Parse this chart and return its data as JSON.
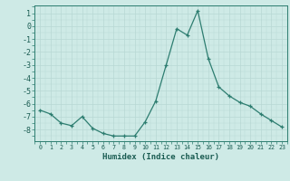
{
  "x": [
    0,
    1,
    2,
    3,
    4,
    5,
    6,
    7,
    8,
    9,
    10,
    11,
    12,
    13,
    14,
    15,
    16,
    17,
    18,
    19,
    20,
    21,
    22,
    23
  ],
  "y": [
    -6.5,
    -6.8,
    -7.5,
    -7.7,
    -7.0,
    -7.9,
    -8.3,
    -8.5,
    -8.5,
    -8.5,
    -7.4,
    -5.8,
    -3.0,
    -0.2,
    -0.7,
    1.2,
    -2.5,
    -4.7,
    -5.4,
    -5.9,
    -6.2,
    -6.8,
    -7.3,
    -7.8
  ],
  "xlabel": "Humidex (Indice chaleur)",
  "ylim": [
    -8.9,
    1.6
  ],
  "xlim": [
    -0.5,
    23.5
  ],
  "yticks": [
    1,
    0,
    -1,
    -2,
    -3,
    -4,
    -5,
    -6,
    -7,
    -8
  ],
  "xticks": [
    0,
    1,
    2,
    3,
    4,
    5,
    6,
    7,
    8,
    9,
    10,
    11,
    12,
    13,
    14,
    15,
    16,
    17,
    18,
    19,
    20,
    21,
    22,
    23
  ],
  "line_color": "#2d7d70",
  "bg_color": "#ceeae6",
  "grid_color": "#b8d8d4",
  "spine_color": "#2d7d70",
  "tick_color": "#2d7d70",
  "label_color": "#1a5c52",
  "marker": "+"
}
